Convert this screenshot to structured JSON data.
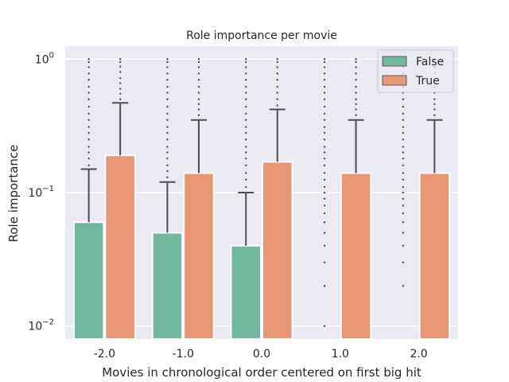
{
  "chart_data": {
    "type": "bar",
    "title": "Role importance per movie",
    "xlabel": "Movies in chronological order centered on first big hit",
    "ylabel": "Role importance",
    "y_scale": "log",
    "ylim": [
      0.008,
      1.25
    ],
    "y_ticks": [
      {
        "value": 0.01,
        "base": "10",
        "exp": "−2"
      },
      {
        "value": 0.1,
        "base": "10",
        "exp": "−1"
      },
      {
        "value": 1,
        "base": "10",
        "exp": "0"
      }
    ],
    "grid": true,
    "legend_position": "top-right",
    "categories": [
      "-2.0",
      "-1.0",
      "0.0",
      "1.0",
      "2.0"
    ],
    "series": [
      {
        "name": "False",
        "color": "#72b89f",
        "values": [
          0.06,
          0.05,
          0.04,
          null,
          null
        ],
        "whisker_high": [
          0.15,
          0.12,
          0.1,
          null,
          null
        ],
        "outliers": [
          [
            0.16,
            0.18,
            0.2,
            0.22,
            0.25,
            0.28,
            0.31,
            0.35,
            0.39,
            0.44,
            0.5,
            0.56,
            0.62,
            0.7,
            0.78,
            0.87,
            0.95,
            1.0
          ],
          [
            0.13,
            0.145,
            0.16,
            0.18,
            0.2,
            0.22,
            0.25,
            0.28,
            0.31,
            0.35,
            0.39,
            0.44,
            0.5,
            0.56,
            0.62,
            0.7,
            0.78,
            0.87,
            0.95,
            1.0
          ],
          [
            0.11,
            0.125,
            0.14,
            0.16,
            0.18,
            0.2,
            0.22,
            0.25,
            0.28,
            0.31,
            0.35,
            0.39,
            0.44,
            0.5,
            0.56,
            0.62,
            0.7,
            0.78,
            0.87,
            0.95,
            1.0
          ],
          [
            0.01,
            0.02,
            0.03,
            0.04,
            0.05,
            0.06,
            0.07,
            0.08,
            0.09,
            0.1,
            0.11,
            0.125,
            0.14,
            0.16,
            0.18,
            0.2,
            0.22,
            0.25,
            0.28,
            0.31,
            0.35,
            0.39,
            0.44,
            0.5,
            0.56,
            0.62,
            0.7,
            0.78,
            0.87,
            0.95,
            1.0
          ],
          [
            0.02,
            0.03,
            0.04,
            0.05,
            0.06,
            0.07,
            0.08,
            0.09,
            0.1,
            0.11,
            0.125,
            0.14,
            0.16,
            0.18,
            0.2,
            0.22,
            0.25,
            0.28,
            0.31,
            0.35,
            0.39,
            0.44,
            0.5,
            0.56,
            0.62,
            0.7,
            0.78,
            0.87,
            0.95,
            1.0
          ]
        ]
      },
      {
        "name": "True",
        "color": "#e99675",
        "values": [
          0.19,
          0.14,
          0.17,
          0.14,
          0.14
        ],
        "whisker_high": [
          0.47,
          0.35,
          0.42,
          0.35,
          0.35
        ],
        "outliers": [
          [
            0.5,
            0.55,
            0.6,
            0.66,
            0.72,
            0.8,
            0.88,
            0.95,
            1.0
          ],
          [
            0.38,
            0.42,
            0.46,
            0.5,
            0.56,
            0.62,
            0.7,
            0.78,
            0.87,
            0.95,
            1.0
          ],
          [
            0.45,
            0.5,
            0.56,
            0.62,
            0.7,
            0.78,
            0.87,
            0.95,
            1.0
          ],
          [
            0.38,
            0.42,
            0.46,
            0.5,
            0.56,
            0.62,
            0.7,
            0.78,
            0.87,
            0.95,
            1.0
          ],
          [
            0.38,
            0.42,
            0.46,
            0.5,
            0.56,
            0.62,
            0.7,
            0.78,
            0.87,
            0.95,
            1.0
          ]
        ]
      }
    ]
  }
}
